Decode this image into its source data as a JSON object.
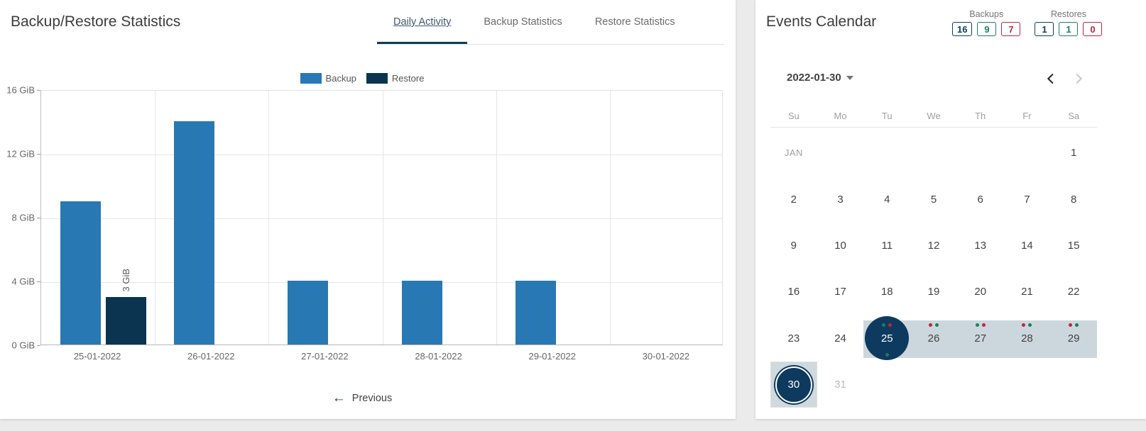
{
  "colors": {
    "backup": "#2878b4",
    "restore": "#0b3450",
    "navy": "#0d3c5c",
    "green": "#1d7d5c",
    "red": "#c0243c",
    "range_band": "#ccd7dd"
  },
  "left_panel": {
    "title": "Backup/Restore Statistics",
    "tabs": [
      {
        "label": "Daily Activity",
        "active": true
      },
      {
        "label": "Backup Statistics",
        "active": false
      },
      {
        "label": "Restore Statistics",
        "active": false
      }
    ],
    "previous_label": "Previous"
  },
  "chart_data": {
    "type": "bar",
    "title": "Daily Activity",
    "categories": [
      "25-01-2022",
      "26-01-2022",
      "27-01-2022",
      "28-01-2022",
      "29-01-2022",
      "30-01-2022"
    ],
    "series": [
      {
        "name": "Backup",
        "color": "#2878b4",
        "values": [
          9,
          14,
          4,
          4,
          4,
          0
        ]
      },
      {
        "name": "Restore",
        "color": "#0b3450",
        "values": [
          3,
          0,
          0,
          0,
          0,
          0
        ]
      }
    ],
    "bar_labels": [
      {
        "category_index": 0,
        "series_index": 1,
        "text": "3 GiB"
      }
    ],
    "ylabel": "",
    "xlabel": "",
    "ylim": [
      0,
      16
    ],
    "y_ticks": [
      {
        "value": 0,
        "label": "0 GiB"
      },
      {
        "value": 4,
        "label": "4 GiB"
      },
      {
        "value": 8,
        "label": "8 GiB"
      },
      {
        "value": 12,
        "label": "12 GiB"
      },
      {
        "value": 16,
        "label": "16 GiB"
      }
    ],
    "grid": true,
    "legend_position": "top"
  },
  "right_panel": {
    "title": "Events Calendar",
    "summary": [
      {
        "label": "Backups",
        "badges": [
          {
            "value": "16",
            "color": "#0d3c5c"
          },
          {
            "value": "9",
            "color": "#1d7d5c"
          },
          {
            "value": "7",
            "color": "#c0243c"
          }
        ]
      },
      {
        "label": "Restores",
        "badges": [
          {
            "value": "1",
            "color": "#0d3c5c"
          },
          {
            "value": "1",
            "color": "#1d7d5c"
          },
          {
            "value": "0",
            "color": "#c0243c"
          }
        ]
      }
    ],
    "calendar": {
      "selected_date_label": "2022-01-30",
      "weekdays": [
        "Su",
        "Mo",
        "Tu",
        "We",
        "Th",
        "Fr",
        "Sa"
      ],
      "weeks": [
        [
          {
            "label": "JAN",
            "month_label": true
          },
          null,
          null,
          null,
          null,
          null,
          {
            "label": "1"
          }
        ],
        [
          {
            "label": "2"
          },
          {
            "label": "3"
          },
          {
            "label": "4"
          },
          {
            "label": "5"
          },
          {
            "label": "6"
          },
          {
            "label": "7"
          },
          {
            "label": "8"
          }
        ],
        [
          {
            "label": "9"
          },
          {
            "label": "10"
          },
          {
            "label": "11"
          },
          {
            "label": "12"
          },
          {
            "label": "13"
          },
          {
            "label": "14"
          },
          {
            "label": "15"
          }
        ],
        [
          {
            "label": "16"
          },
          {
            "label": "17"
          },
          {
            "label": "18"
          },
          {
            "label": "19"
          },
          {
            "label": "20"
          },
          {
            "label": "21"
          },
          {
            "label": "22"
          }
        ],
        [
          {
            "label": "23"
          },
          {
            "label": "24"
          },
          {
            "label": "25",
            "selected": true,
            "in_range": true,
            "dots_top": [
              "green",
              "red"
            ],
            "dots_bottom": [
              "green"
            ]
          },
          {
            "label": "26",
            "in_range": true,
            "dots_top": [
              "red",
              "green"
            ]
          },
          {
            "label": "27",
            "in_range": true,
            "dots_top": [
              "green",
              "red"
            ]
          },
          {
            "label": "28",
            "in_range": true,
            "dots_top": [
              "red",
              "green"
            ]
          },
          {
            "label": "29",
            "in_range": true,
            "dots_top": [
              "red",
              "green"
            ]
          }
        ],
        [
          {
            "label": "30",
            "today": true
          },
          {
            "label": "31",
            "muted": true
          },
          null,
          null,
          null,
          null,
          null
        ]
      ]
    }
  }
}
